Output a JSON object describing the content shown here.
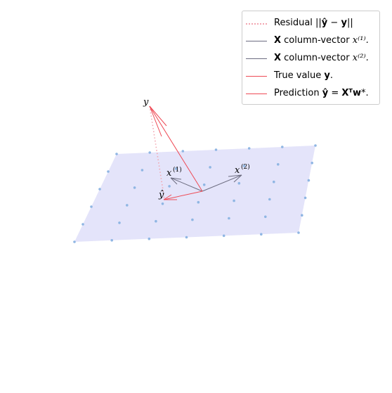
{
  "colors": {
    "plane": "#e4e4fa",
    "points": "#8fb6e3",
    "column_vector": "#6c6c80",
    "true_value": "#ee4a55",
    "residual": "#f2a6b0"
  },
  "labels": {
    "y": "y",
    "y_hat": "ŷ",
    "x1_base": "x",
    "x1_sup": "(1)",
    "x2_base": "x",
    "x2_sup": "(2)"
  },
  "legend": {
    "items": [
      {
        "key": "residual",
        "style": "dotted",
        "text_main": "Residual ||",
        "text_bold": "ŷ",
        "text_mid": " − ",
        "text_bold2": "y",
        "text_end": "||"
      },
      {
        "key": "column_vector",
        "style": "solid",
        "text_bold": "X",
        "text_main": " column-vector ",
        "text_end": "x⁽¹⁾."
      },
      {
        "key": "column_vector",
        "style": "solid",
        "text_bold": "X",
        "text_main": " column-vector ",
        "text_end": "x⁽²⁾."
      },
      {
        "key": "true_value",
        "style": "solid",
        "text_main": "True value ",
        "text_bold": "y",
        "text_end": "."
      },
      {
        "key": "true_value",
        "style": "solid",
        "text_main": "Prediction ",
        "text_bold": "ŷ",
        "text_mid": " = ",
        "text_bold2": "Xᵀw",
        "text_end": "*."
      }
    ]
  }
}
